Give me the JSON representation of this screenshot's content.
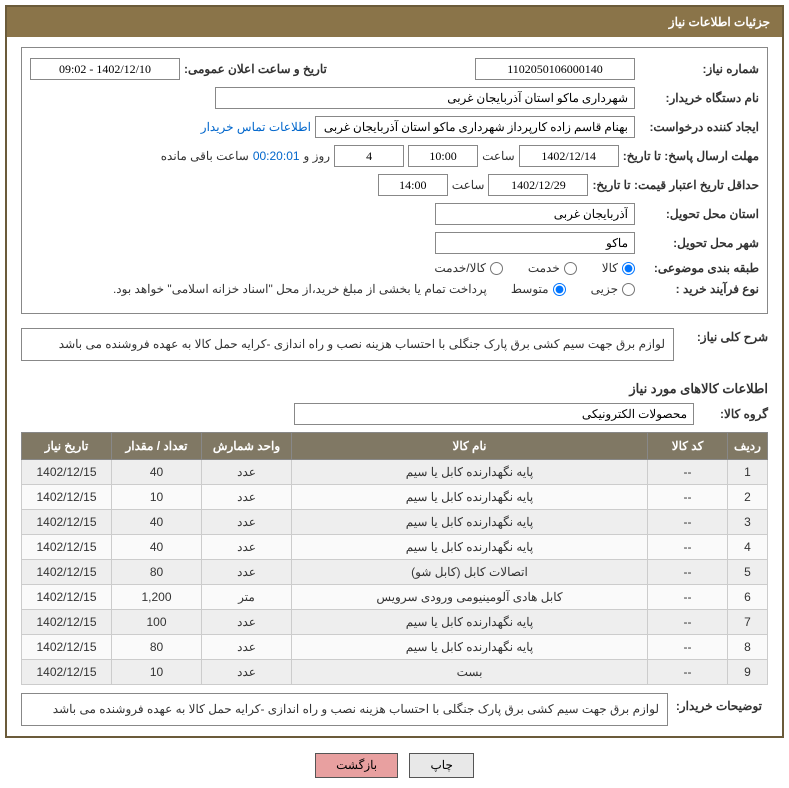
{
  "header": {
    "title": "جزئیات اطلاعات نیاز"
  },
  "fields": {
    "need_no_label": "شماره نیاز:",
    "need_no": "1102050106000140",
    "announce_dt_label": "تاریخ و ساعت اعلان عمومی:",
    "announce_dt": "1402/12/10 - 09:02",
    "buyer_org_label": "نام دستگاه خریدار:",
    "buyer_org": "شهرداری ماکو استان آذربایجان غربی",
    "requester_label": "ایجاد کننده درخواست:",
    "requester": "بهنام قاسم زاده کارپرداز شهرداری ماکو استان آذربایجان غربی",
    "buyer_contact_link": "اطلاعات تماس خریدار",
    "reply_deadline_label": "مهلت ارسال پاسخ: تا تاریخ:",
    "reply_date": "1402/12/14",
    "hour_label": "ساعت",
    "reply_time": "10:00",
    "days": "4",
    "days_label": "روز و",
    "countdown": "00:20:01",
    "remain_label": "ساعت باقی مانده",
    "price_valid_label": "حداقل تاریخ اعتبار قیمت: تا تاریخ:",
    "price_valid_date": "1402/12/29",
    "price_valid_time": "14:00",
    "deliv_prov_label": "استان محل تحویل:",
    "deliv_prov": "آذربایجان غربی",
    "deliv_city_label": "شهر محل تحویل:",
    "deliv_city": "ماکو",
    "category_label": "طبقه بندی موضوعی:",
    "cat_goods": "کالا",
    "cat_service": "خدمت",
    "cat_goods_service": "کالا/خدمت",
    "process_type_label": "نوع فرآیند خرید :",
    "proc_small": "جزیی",
    "proc_medium": "متوسط",
    "payment_note": "پرداخت تمام یا بخشی از مبلغ خرید،از محل \"اسناد خزانه اسلامی\" خواهد بود.",
    "general_desc_label": "شرح کلی نیاز:",
    "general_desc": "لوازم برق جهت سیم کشی برق پارک جنگلی با احتساب هزینه نصب و راه اندازی -کرایه حمل کالا به عهده فروشنده می باشد",
    "goods_info_title": "اطلاعات کالاهای مورد نیاز",
    "goods_group_label": "گروه کالا:",
    "goods_group": "محصولات الکترونیکی",
    "buyer_notes_label": "توضیحات خریدار:",
    "buyer_notes": "لوازم برق جهت سیم کشی برق پارک جنگلی با احتساب هزینه نصب و راه اندازی -کرایه حمل کالا به عهده فروشنده می باشد"
  },
  "table": {
    "headers": [
      "ردیف",
      "کد کالا",
      "نام کالا",
      "واحد شمارش",
      "تعداد / مقدار",
      "تاریخ نیاز"
    ],
    "rows": [
      [
        "1",
        "--",
        "پایه نگهدارنده کابل یا سیم",
        "عدد",
        "40",
        "1402/12/15"
      ],
      [
        "2",
        "--",
        "پایه نگهدارنده کابل یا سیم",
        "عدد",
        "10",
        "1402/12/15"
      ],
      [
        "3",
        "--",
        "پایه نگهدارنده کابل یا سیم",
        "عدد",
        "40",
        "1402/12/15"
      ],
      [
        "4",
        "--",
        "پایه نگهدارنده کابل یا سیم",
        "عدد",
        "40",
        "1402/12/15"
      ],
      [
        "5",
        "--",
        "اتصالات کابل (کابل شو)",
        "عدد",
        "80",
        "1402/12/15"
      ],
      [
        "6",
        "--",
        "کابل هادی آلومینیومی ورودی سرویس",
        "متر",
        "1,200",
        "1402/12/15"
      ],
      [
        "7",
        "--",
        "پایه نگهدارنده کابل یا سیم",
        "عدد",
        "100",
        "1402/12/15"
      ],
      [
        "8",
        "--",
        "پایه نگهدارنده کابل یا سیم",
        "عدد",
        "80",
        "1402/12/15"
      ],
      [
        "9",
        "--",
        "بست",
        "عدد",
        "10",
        "1402/12/15"
      ]
    ],
    "col_widths": [
      "40px",
      "80px",
      "auto",
      "90px",
      "90px",
      "90px"
    ]
  },
  "buttons": {
    "print": "چاپ",
    "back": "بازگشت"
  },
  "watermark": {
    "text": "AriaTender.neT"
  },
  "colors": {
    "header_bg": "#8a7449",
    "th_bg": "#807864",
    "border": "#6b5b3a",
    "link": "#0066cc",
    "btn_back": "#e8a0a0"
  }
}
